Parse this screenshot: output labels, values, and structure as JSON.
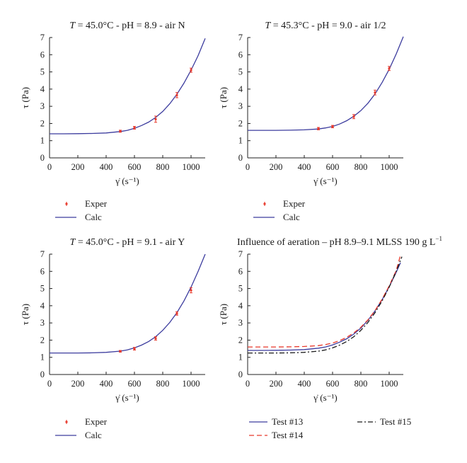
{
  "colors": {
    "exper": "#e8392b",
    "calc": "#3c3c9e",
    "test13": "#3c3c9e",
    "test14": "#e8392b",
    "test15": "#1a1a1a",
    "axis": "#222222"
  },
  "chart_data": [
    {
      "id": "p1",
      "type": "line",
      "title_sym": "T",
      "title_rest": " = 45.0°C - pH = 8.9 - air N",
      "xlabel": "γ̇ (s⁻¹)",
      "ylabel": "τ (Pa)",
      "xlim": [
        0,
        1100
      ],
      "ylim": [
        0,
        7
      ],
      "xticks": [
        0,
        200,
        400,
        600,
        800,
        1000
      ],
      "yticks": [
        0,
        1,
        2,
        3,
        4,
        5,
        6,
        7
      ],
      "grid": false,
      "legend_position": "below",
      "exper": {
        "name": "Exper",
        "x": [
          500,
          600,
          750,
          900,
          1000
        ],
        "y": [
          1.55,
          1.75,
          2.25,
          3.65,
          5.1
        ],
        "err": [
          0.06,
          0.08,
          0.18,
          0.15,
          0.12
        ]
      },
      "calc": {
        "name": "Calc",
        "x": [
          0,
          100,
          200,
          300,
          400,
          500,
          550,
          600,
          650,
          700,
          750,
          800,
          850,
          900,
          950,
          1000,
          1050,
          1100
        ],
        "y": [
          1.4,
          1.4,
          1.41,
          1.42,
          1.45,
          1.53,
          1.6,
          1.72,
          1.88,
          2.08,
          2.35,
          2.7,
          3.15,
          3.7,
          4.35,
          5.1,
          5.95,
          6.95
        ]
      }
    },
    {
      "id": "p2",
      "type": "line",
      "title_sym": "T",
      "title_rest": " = 45.3°C - pH = 9.0 - air 1/2",
      "xlabel": "γ̇ (s⁻¹)",
      "ylabel": "τ (Pa)",
      "xlim": [
        0,
        1100
      ],
      "ylim": [
        0,
        7
      ],
      "xticks": [
        0,
        200,
        400,
        600,
        800,
        1000
      ],
      "yticks": [
        0,
        1,
        2,
        3,
        4,
        5,
        6,
        7
      ],
      "grid": false,
      "legend_position": "below",
      "exper": {
        "name": "Exper",
        "x": [
          500,
          600,
          750,
          900,
          1000
        ],
        "y": [
          1.7,
          1.82,
          2.4,
          3.8,
          5.2
        ],
        "err": [
          0.07,
          0.07,
          0.12,
          0.14,
          0.12
        ]
      },
      "calc": {
        "name": "Calc",
        "x": [
          0,
          100,
          200,
          300,
          400,
          500,
          550,
          600,
          650,
          700,
          750,
          800,
          850,
          900,
          950,
          1000,
          1050,
          1100
        ],
        "y": [
          1.6,
          1.6,
          1.6,
          1.61,
          1.63,
          1.68,
          1.74,
          1.83,
          1.97,
          2.16,
          2.42,
          2.75,
          3.18,
          3.72,
          4.38,
          5.15,
          6.05,
          7.05
        ]
      }
    },
    {
      "id": "p3",
      "type": "line",
      "title_sym": "T",
      "title_rest": " = 45.0°C - pH = 9.1 - air Y",
      "xlabel": "γ̇ (s⁻¹)",
      "ylabel": "τ (Pa)",
      "xlim": [
        0,
        1100
      ],
      "ylim": [
        0,
        7
      ],
      "xticks": [
        0,
        200,
        400,
        600,
        800,
        1000
      ],
      "yticks": [
        0,
        1,
        2,
        3,
        4,
        5,
        6,
        7
      ],
      "grid": false,
      "legend_position": "below",
      "exper": {
        "name": "Exper",
        "x": [
          500,
          600,
          750,
          900,
          1000
        ],
        "y": [
          1.35,
          1.5,
          2.1,
          3.55,
          4.9
        ],
        "err": [
          0.05,
          0.08,
          0.1,
          0.1,
          0.15
        ]
      },
      "calc": {
        "name": "Calc",
        "x": [
          0,
          100,
          200,
          300,
          400,
          500,
          550,
          600,
          650,
          700,
          750,
          800,
          850,
          900,
          950,
          1000,
          1050,
          1100
        ],
        "y": [
          1.25,
          1.25,
          1.25,
          1.26,
          1.29,
          1.36,
          1.43,
          1.55,
          1.71,
          1.92,
          2.2,
          2.57,
          3.03,
          3.6,
          4.28,
          5.08,
          6.0,
          7.0
        ]
      }
    },
    {
      "id": "p4",
      "type": "line",
      "title": "Influence of aeration – pH 8.9–9.1 MLSS 190 g L",
      "title_sup": "−1",
      "xlabel": "γ̇ (s⁻¹)",
      "ylabel": "τ (Pa)",
      "xlim": [
        0,
        1100
      ],
      "ylim": [
        0,
        7
      ],
      "xticks": [
        0,
        200,
        400,
        600,
        800,
        1000
      ],
      "yticks": [
        0,
        1,
        2,
        3,
        4,
        5,
        6,
        7
      ],
      "grid": false,
      "legend_position": "below",
      "series": [
        {
          "name": "Test #13",
          "style": "solid",
          "x": [
            0,
            100,
            200,
            300,
            400,
            500,
            550,
            600,
            650,
            700,
            750,
            800,
            850,
            900,
            950,
            1000,
            1050,
            1080
          ],
          "y": [
            1.4,
            1.4,
            1.41,
            1.42,
            1.45,
            1.53,
            1.6,
            1.72,
            1.88,
            2.08,
            2.35,
            2.7,
            3.15,
            3.7,
            4.35,
            5.1,
            5.95,
            6.5
          ]
        },
        {
          "name": "Test #14",
          "style": "dashed",
          "x": [
            0,
            100,
            200,
            300,
            400,
            500,
            550,
            600,
            650,
            700,
            750,
            800,
            850,
            900,
            950,
            1000,
            1050,
            1080
          ],
          "y": [
            1.6,
            1.6,
            1.6,
            1.61,
            1.63,
            1.68,
            1.74,
            1.83,
            1.97,
            2.16,
            2.42,
            2.75,
            3.18,
            3.72,
            4.38,
            5.15,
            6.05,
            6.95
          ]
        },
        {
          "name": "Test #15",
          "style": "dashdot",
          "x": [
            0,
            100,
            200,
            300,
            400,
            500,
            550,
            600,
            650,
            700,
            750,
            800,
            850,
            900,
            950,
            1000,
            1050,
            1090
          ],
          "y": [
            1.25,
            1.25,
            1.25,
            1.26,
            1.29,
            1.36,
            1.43,
            1.55,
            1.71,
            1.92,
            2.2,
            2.57,
            3.03,
            3.6,
            4.28,
            5.08,
            6.0,
            6.85
          ]
        }
      ]
    }
  ]
}
